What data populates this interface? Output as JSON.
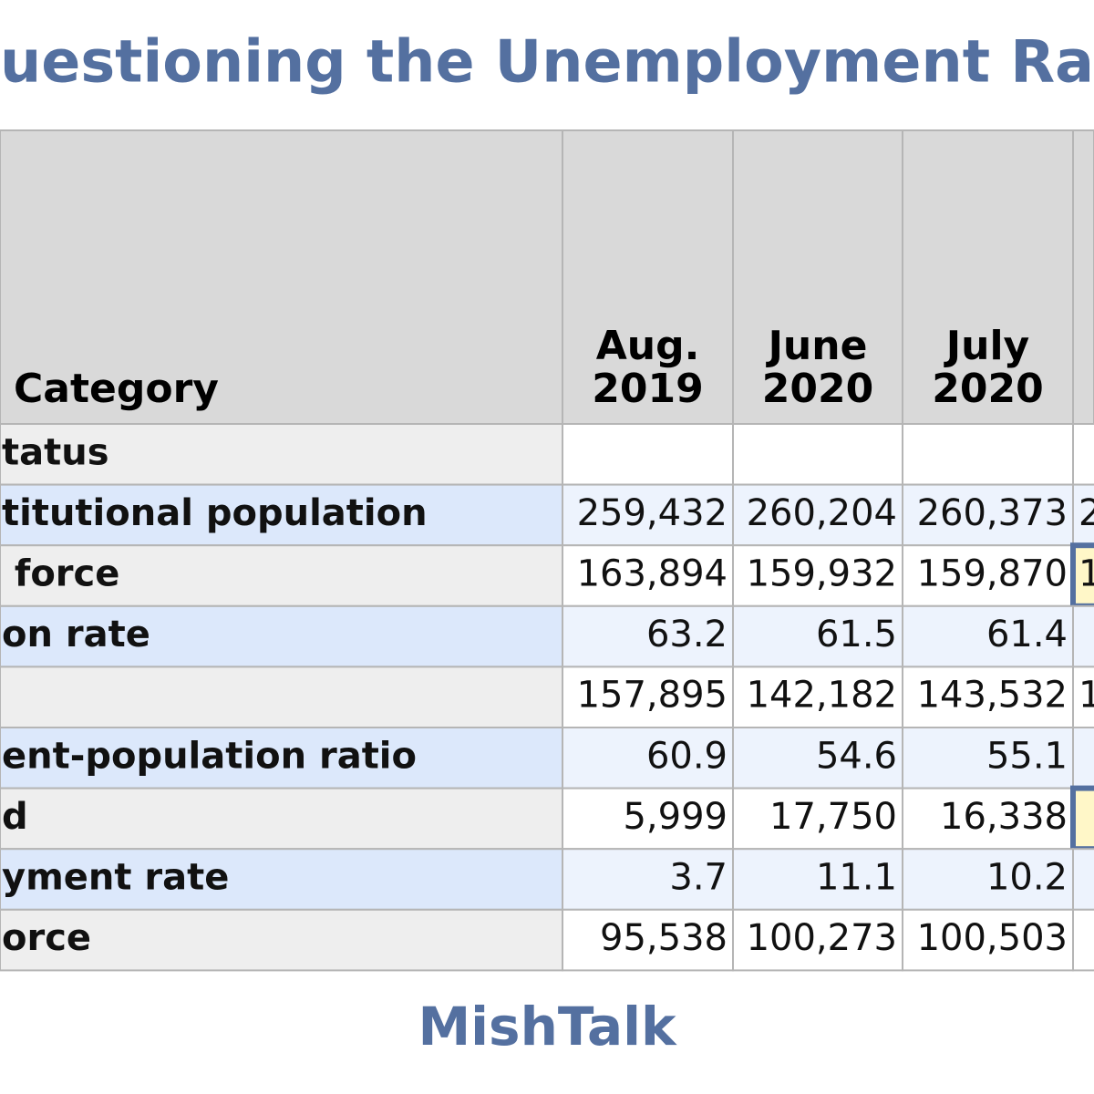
{
  "title": "uestioning the Unemployment Ra",
  "table": {
    "header": [
      [
        "Category"
      ],
      [
        "Aug.",
        "2019"
      ],
      [
        "June",
        "2020"
      ],
      [
        "July",
        "2020"
      ]
    ],
    "rows": [
      {
        "label": "tatus",
        "section": true,
        "cells": []
      },
      {
        "label": "titutional population",
        "cells": [
          "259,432",
          "260,204",
          "260,373",
          "2"
        ]
      },
      {
        "label": " force",
        "cells": [
          "163,894",
          "159,932",
          "159,870",
          "1"
        ],
        "highlight": true
      },
      {
        "label": "on rate",
        "cells": [
          "63.2",
          "61.5",
          "61.4"
        ]
      },
      {
        "label": null,
        "cells": [
          "157,895",
          "142,182",
          "143,532",
          "1"
        ]
      },
      {
        "label": "ent-population ratio",
        "cells": [
          "60.9",
          "54.6",
          "55.1"
        ]
      },
      {
        "label": "d",
        "cells": [
          "5,999",
          "17,750",
          "16,338"
        ],
        "highlight": true
      },
      {
        "label": "yment rate",
        "cells": [
          "3.7",
          "11.1",
          "10.2"
        ]
      },
      {
        "label": "orce",
        "cells": [
          "95,538",
          "100,273",
          "100,503"
        ]
      }
    ]
  },
  "footer": "MishTalk"
}
